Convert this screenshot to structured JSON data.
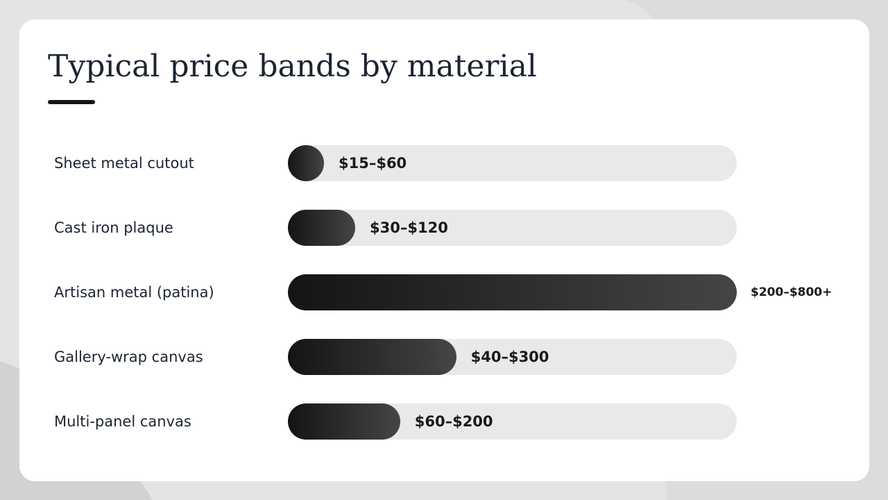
{
  "slide": {
    "title": "Typical price bands by material"
  },
  "chart_data": {
    "type": "bar",
    "orientation": "horizontal",
    "title": "Typical price bands by material",
    "categories": [
      "Sheet metal cutout",
      "Cast iron plaque",
      "Artisan metal (patina)",
      "Gallery-wrap canvas",
      "Multi-panel canvas"
    ],
    "value_labels": [
      "$15–$60",
      "$30–$120",
      "$200–$800+",
      "$40–$300",
      "$60–$200"
    ],
    "values": [
      60,
      120,
      800,
      300,
      200
    ],
    "xlim": [
      0,
      800
    ],
    "grid": false,
    "legend": "none",
    "colors": {
      "bar_start": "#141414",
      "bar_end": "#454545",
      "track": "#e9e9e9",
      "label": "#1c2433",
      "card": "#ffffff",
      "background": "#dcdcdc"
    }
  }
}
